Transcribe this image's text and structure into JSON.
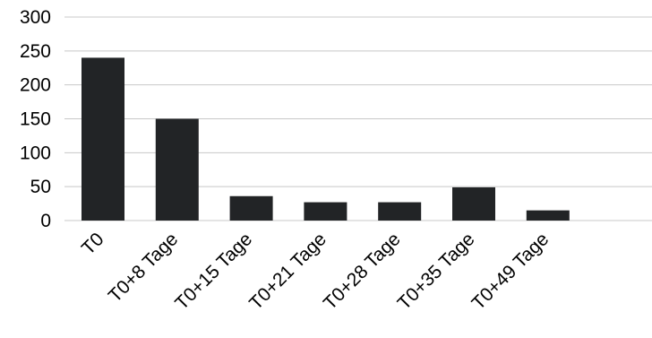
{
  "chart_data": {
    "type": "bar",
    "categories": [
      "T0",
      "T0+8 Tage",
      "T0+15 Tage",
      "T0+21 Tage",
      "T0+28 Tage",
      "T0+35 Tage",
      "T0+49 Tage"
    ],
    "values": [
      240,
      150,
      36,
      27,
      27,
      49,
      15
    ],
    "title": "",
    "xlabel": "",
    "ylabel": "",
    "ylim": [
      0,
      300
    ],
    "yticks": [
      0,
      50,
      100,
      150,
      200,
      250,
      300
    ],
    "grid": true,
    "legend": "none",
    "bar_color": "#222426",
    "grid_color": "#c8c8c8"
  }
}
